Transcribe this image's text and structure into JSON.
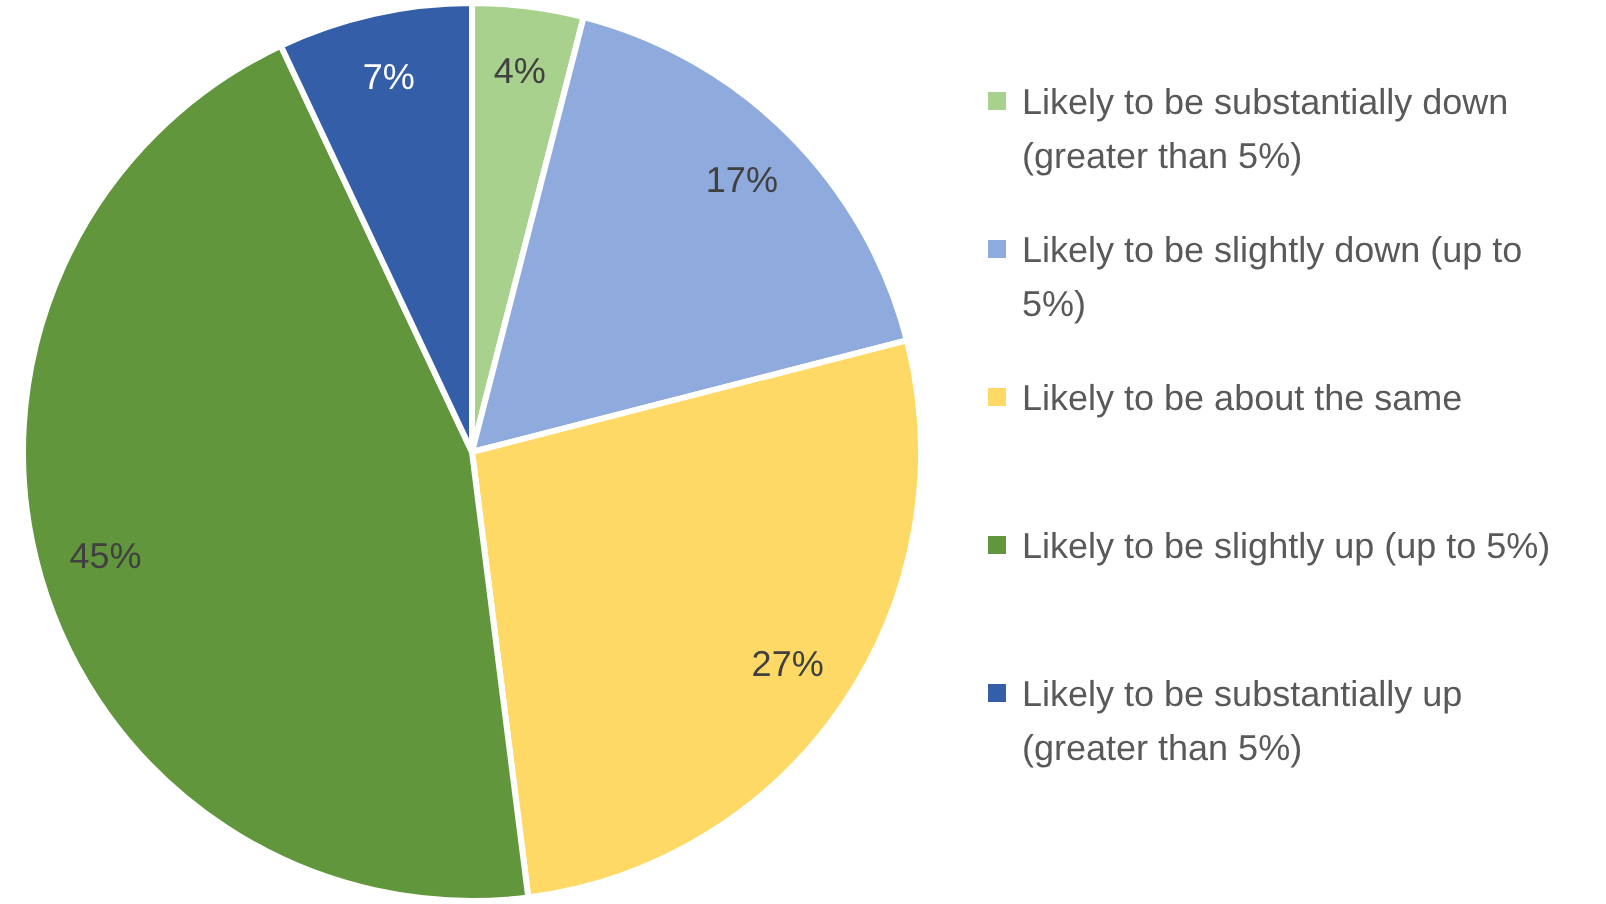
{
  "chart_data": {
    "type": "pie",
    "categories": [
      "Likely to be substantially down (greater than 5%)",
      "Likely to be slightly down (up to 5%)",
      "Likely to be about the same",
      "Likely to be slightly up (up to 5%)",
      "Likely to be substantially up (greater than 5%)"
    ],
    "values": [
      4,
      17,
      27,
      45,
      7
    ],
    "colors": [
      "#a9d18e",
      "#8faadc",
      "#ffd966",
      "#62963c",
      "#355ea8"
    ],
    "value_labels": [
      "4%",
      "17%",
      "27%",
      "45%",
      "7%"
    ],
    "legend": "right"
  }
}
